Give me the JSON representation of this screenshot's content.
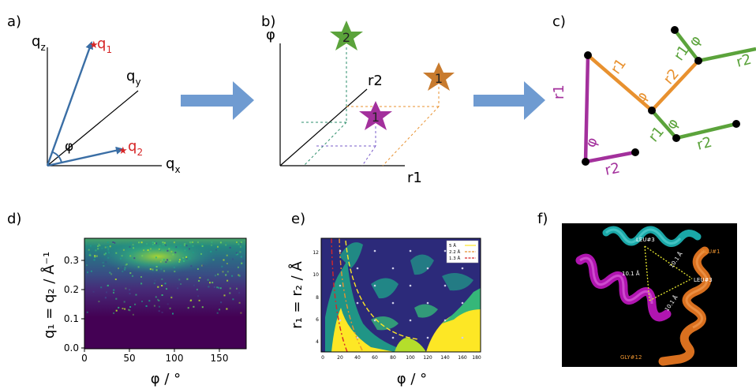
{
  "panels": {
    "a": {
      "letter": "a)",
      "qz": "q",
      "qz_sub": "z",
      "qy": "q",
      "qy_sub": "y",
      "qx": "q",
      "qx_sub": "x",
      "q1": "q",
      "q1_sub": "1",
      "q2": "q",
      "q2_sub": "2",
      "phi": "φ"
    },
    "b": {
      "letter": "b)",
      "axis_phi": "φ",
      "axis_r2": "r2",
      "axis_r1": "r1",
      "star_green": "2",
      "star_orange": "1",
      "star_purple": "1"
    },
    "c": {
      "letter": "c)",
      "purple_r1": "r1",
      "purple_phi": "φ",
      "purple_r2": "r2",
      "orange_r1": "r1",
      "orange_phi": "φ",
      "orange_r2": "r2",
      "green_top_phi": "φ",
      "green_top_r1": "r1",
      "green_top_r2": "r2",
      "green_bot_r1": "r1",
      "green_bot_phi": "φ",
      "green_bot_r2": "r2"
    },
    "d": {
      "letter": "d)",
      "ylabel": "q₁ = q₂ / Å⁻¹",
      "xlabel": "φ / °",
      "yticks": [
        "0.0",
        "0.1",
        "0.2",
        "0.3"
      ],
      "xticks": [
        "0",
        "50",
        "100",
        "150"
      ]
    },
    "e": {
      "letter": "e)",
      "ylabel": "r₁ = r₂ / Å",
      "xlabel": "φ / °",
      "yticks": [
        "4",
        "6",
        "8",
        "10",
        "12"
      ],
      "xticks": [
        "0",
        "20",
        "40",
        "60",
        "80",
        "100",
        "120",
        "140",
        "160",
        "180"
      ],
      "legend": [
        "5 Å",
        "2.2 Å",
        "1.3 Å"
      ]
    },
    "f": {
      "letter": "f)",
      "leu3_top": "LEU#3",
      "glu1": "GLU#1",
      "leu3_right": "LEU#3",
      "gly12": "GLY#12",
      "dist1": "10.1 Å",
      "dist2": "10.1 Å",
      "dist3": "10.1 Å"
    }
  },
  "colors": {
    "arrow": "#6f9bd1",
    "vector": "#3a6ea5",
    "red": "#d62728",
    "green": "#5ba33b",
    "orange": "#e8912f",
    "purple": "#a3309c",
    "viridis_dark": "#440154"
  }
}
